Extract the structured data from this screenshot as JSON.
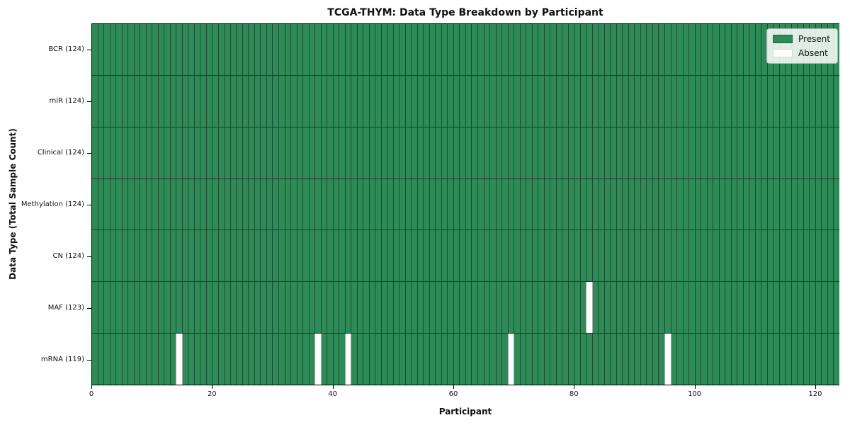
{
  "chart_data": {
    "type": "heatmap",
    "title": "TCGA-THYM: Data Type Breakdown by Participant",
    "xlabel": "Participant",
    "ylabel": "Data Type (Total Sample Count)",
    "n_participants": 124,
    "x_range": [
      0,
      124
    ],
    "x_ticks": [
      0,
      20,
      40,
      60,
      80,
      100,
      120
    ],
    "grid": "cell-borders",
    "legend_position": "upper right",
    "rows": [
      {
        "label": "BCR (124)",
        "data_type": "BCR",
        "present_count": 124,
        "absent_participants": []
      },
      {
        "label": "miR (124)",
        "data_type": "miR",
        "present_count": 124,
        "absent_participants": []
      },
      {
        "label": "Clinical (124)",
        "data_type": "Clinical",
        "present_count": 124,
        "absent_participants": []
      },
      {
        "label": "Methylation (124)",
        "data_type": "Methylation",
        "present_count": 124,
        "absent_participants": []
      },
      {
        "label": "CN (124)",
        "data_type": "CN",
        "present_count": 124,
        "absent_participants": []
      },
      {
        "label": "MAF (123)",
        "data_type": "MAF",
        "present_count": 123,
        "absent_participants": [
          82
        ]
      },
      {
        "label": "mRNA (119)",
        "data_type": "mRNA",
        "present_count": 119,
        "absent_participants": [
          14,
          37,
          42,
          69,
          95
        ]
      }
    ],
    "legend": [
      {
        "label": "Present",
        "color": "#2e8b57"
      },
      {
        "label": "Absent",
        "color": "#ffffff"
      }
    ],
    "colors": {
      "present": "#2e8b57",
      "absent": "#ffffff",
      "cell_edge": "rgba(0,0,0,0.45)",
      "row_divider": "rgba(0,0,0,0.8)",
      "frame": "#000000"
    }
  }
}
